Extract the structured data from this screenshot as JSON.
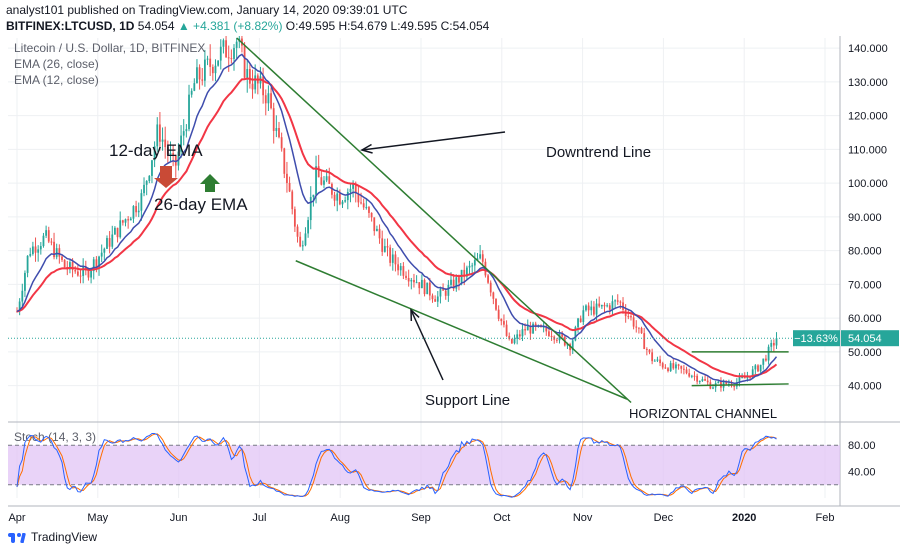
{
  "header": {
    "published": "analyst101 published on TradingView.com, January 14, 2020 09:39:01 UTC",
    "symbol": "BITFINEX:LTCUSD, 1D",
    "last": "54.054",
    "change": "▲ +4.381 (+8.82%)",
    "ohlc": "O:49.595 H:54.679 L:49.595 C:54.054"
  },
  "legend": {
    "title": "Litecoin / U.S. Dollar, 1D, BITFINEX",
    "ema26": "EMA (26, close)",
    "ema12": "EMA (12, close)",
    "stoch": "Stoch (14, 3, 3)"
  },
  "annotations": {
    "ema12": "12-day EMA",
    "ema26": "26-day EMA",
    "downtrend": "Downtrend Line",
    "support": "Support Line",
    "channel": "HORIZONTAL CHANNEL"
  },
  "price_labels": {
    "pct": "−13.63%",
    "last": "54.054"
  },
  "footer": {
    "brand": "TradingView"
  },
  "colors": {
    "up": "#26a69a",
    "down": "#ef5350",
    "ema26": "#f23645",
    "ema12": "#3f4dad",
    "trend": "#2e7d32",
    "stoch_k": "#2962ff",
    "stoch_d": "#ff6d00",
    "stoch_band": "#e1c4f5"
  },
  "chart_data": {
    "type": "candlestick",
    "x_ticks": [
      "Apr",
      "May",
      "Jun",
      "Jul",
      "Aug",
      "Sep",
      "Oct",
      "Nov",
      "Dec",
      "2020",
      "Feb"
    ],
    "y_ticks": [
      40,
      50,
      60,
      70,
      80,
      90,
      100,
      110,
      120,
      130,
      140
    ],
    "ylim": [
      31,
      143
    ],
    "stoch_ticks": [
      40,
      80
    ],
    "stoch_ylim": [
      0,
      100
    ],
    "stoch_band": [
      20,
      80
    ],
    "last_price": 54.054,
    "close_anchors": [
      {
        "month": 0.0,
        "close": 62
      },
      {
        "month": 0.15,
        "close": 80
      },
      {
        "month": 0.35,
        "close": 84
      },
      {
        "month": 0.6,
        "close": 75
      },
      {
        "month": 0.85,
        "close": 73
      },
      {
        "month": 1.0,
        "close": 78
      },
      {
        "month": 1.3,
        "close": 88
      },
      {
        "month": 1.55,
        "close": 96
      },
      {
        "month": 1.75,
        "close": 116
      },
      {
        "month": 1.95,
        "close": 104
      },
      {
        "month": 2.2,
        "close": 130
      },
      {
        "month": 2.5,
        "close": 138
      },
      {
        "month": 2.72,
        "close": 142
      },
      {
        "month": 2.85,
        "close": 132
      },
      {
        "month": 3.1,
        "close": 126
      },
      {
        "month": 3.35,
        "close": 100
      },
      {
        "month": 3.5,
        "close": 80
      },
      {
        "month": 3.7,
        "close": 102
      },
      {
        "month": 4.0,
        "close": 96
      },
      {
        "month": 4.15,
        "close": 99
      },
      {
        "month": 4.4,
        "close": 88
      },
      {
        "month": 4.6,
        "close": 78
      },
      {
        "month": 4.9,
        "close": 72
      },
      {
        "month": 5.2,
        "close": 66
      },
      {
        "month": 5.4,
        "close": 70
      },
      {
        "month": 5.75,
        "close": 78
      },
      {
        "month": 5.95,
        "close": 62
      },
      {
        "month": 6.1,
        "close": 52
      },
      {
        "month": 6.3,
        "close": 57
      },
      {
        "month": 6.6,
        "close": 56
      },
      {
        "month": 6.85,
        "close": 52
      },
      {
        "month": 7.0,
        "close": 62
      },
      {
        "month": 7.25,
        "close": 63
      },
      {
        "month": 7.45,
        "close": 65
      },
      {
        "month": 7.65,
        "close": 58
      },
      {
        "month": 7.85,
        "close": 48
      },
      {
        "month": 8.0,
        "close": 46
      },
      {
        "month": 8.3,
        "close": 44
      },
      {
        "month": 8.6,
        "close": 40
      },
      {
        "month": 8.9,
        "close": 41
      },
      {
        "month": 9.0,
        "close": 42
      },
      {
        "month": 9.2,
        "close": 46
      },
      {
        "month": 9.4,
        "close": 54
      }
    ],
    "series": [
      {
        "name": "EMA (26, close)"
      },
      {
        "name": "EMA (12, close)"
      }
    ],
    "trendlines": [
      {
        "name": "Downtrend Line",
        "from": {
          "month": 2.72,
          "price": 143
        },
        "to": {
          "month": 7.6,
          "price": 35
        }
      },
      {
        "name": "Support Line",
        "from": {
          "month": 3.45,
          "price": 77
        },
        "to": {
          "month": 7.55,
          "price": 36
        }
      },
      {
        "name": "HORIZONTAL CHANNEL upper",
        "from": {
          "month": 8.35,
          "price": 50
        },
        "to": {
          "month": 9.55,
          "price": 50
        }
      },
      {
        "name": "HORIZONTAL CHANNEL lower",
        "from": {
          "month": 8.35,
          "price": 40
        },
        "to": {
          "month": 9.55,
          "price": 40.5
        }
      }
    ]
  }
}
